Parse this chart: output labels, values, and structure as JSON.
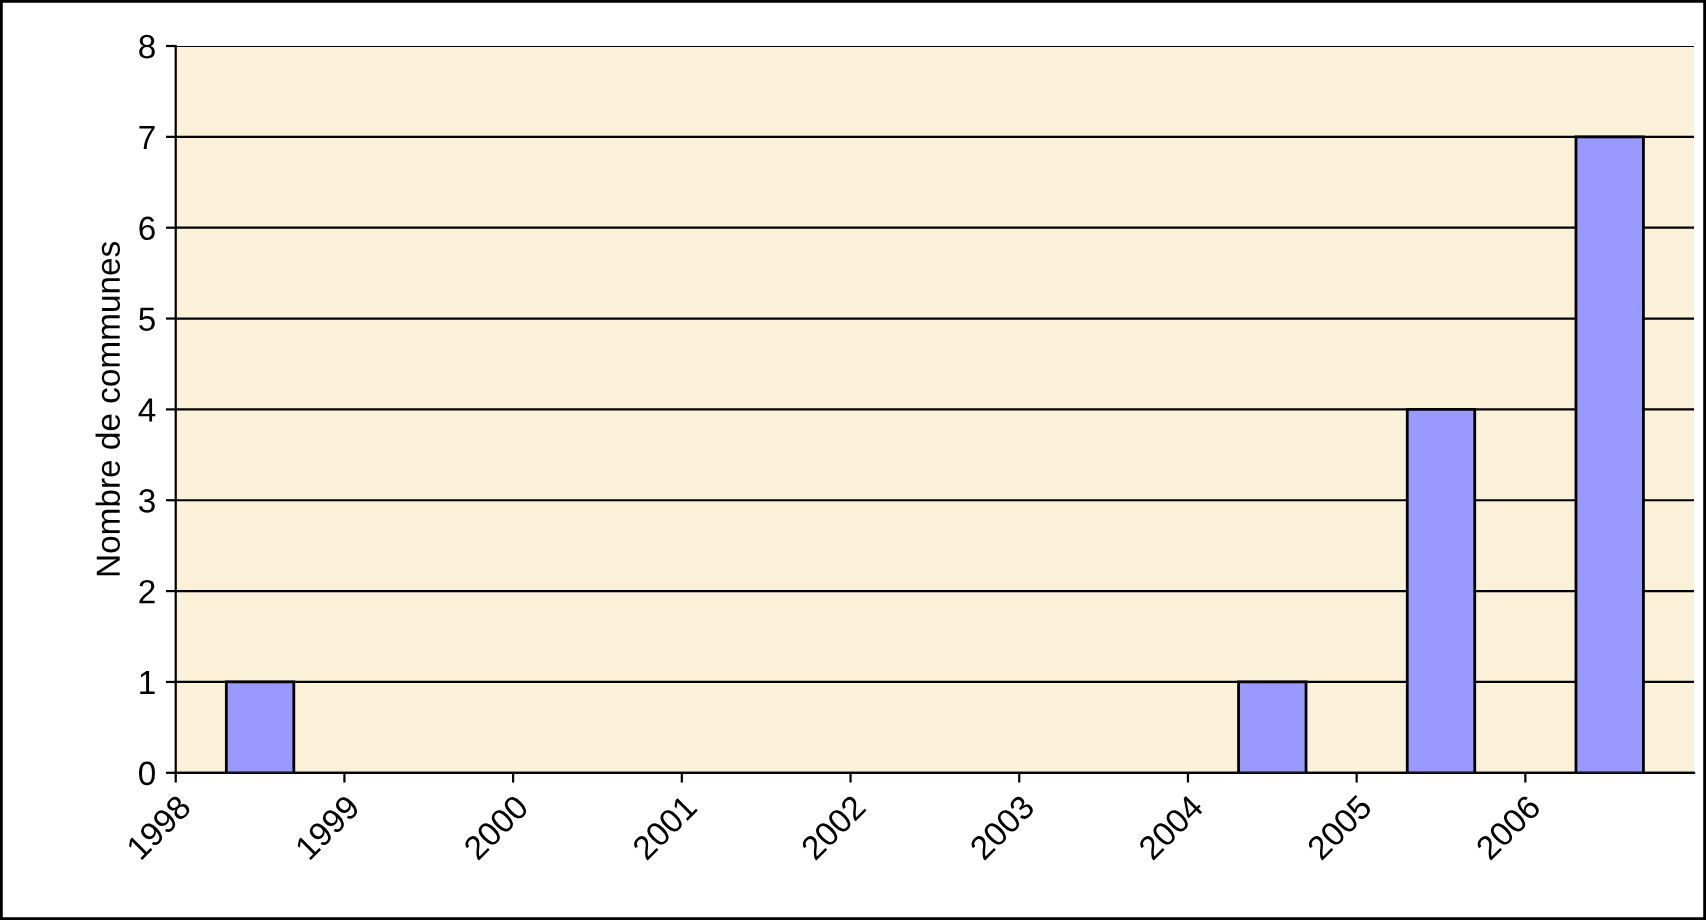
{
  "chart_data": {
    "type": "bar",
    "ylabel": "Nombre de communes",
    "categories": [
      "1998",
      "1999",
      "2000",
      "2001",
      "2002",
      "2003",
      "2004",
      "2005",
      "2006"
    ],
    "values": [
      1,
      0,
      0,
      0,
      0,
      0,
      1,
      4,
      7
    ],
    "color": "#9999ff",
    "ylim": [
      0,
      8
    ],
    "yticks": [
      0,
      1,
      2,
      3,
      4,
      5,
      6,
      7,
      8
    ],
    "grid": "y",
    "legend": false
  }
}
